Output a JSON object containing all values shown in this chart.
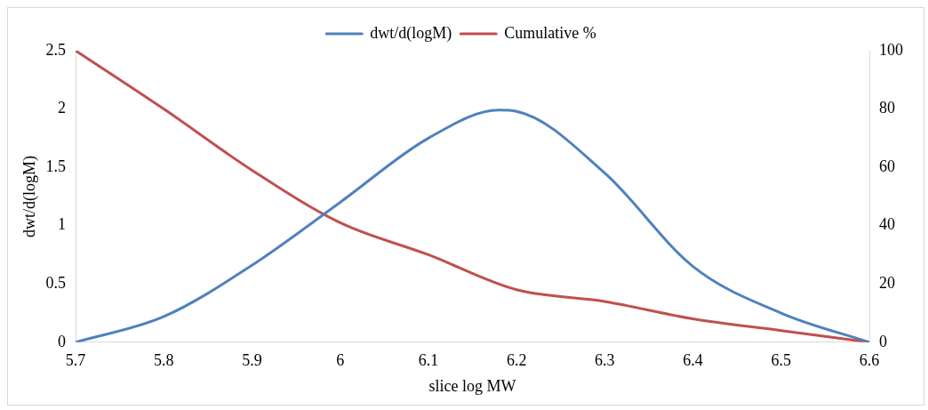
{
  "chart_data": {
    "type": "line",
    "xlabel": "slice log MW",
    "ylabel": "dwt/d(logM)",
    "x": [
      5.7,
      5.8,
      5.9,
      6.0,
      6.1,
      6.18,
      6.2,
      6.3,
      6.4,
      6.5,
      6.6
    ],
    "series": [
      {
        "name": "dwt/d(logM)",
        "color": "#4f81bd",
        "values": [
          0,
          0.22,
          0.66,
          1.2,
          1.75,
          1.99,
          1.98,
          1.45,
          0.65,
          0.25,
          0
        ]
      },
      {
        "name": "Cumulative %",
        "color": "#c0504d",
        "axis": "y2",
        "x": [
          5.7,
          5.8,
          5.9,
          6.0,
          6.1,
          6.2,
          6.3,
          6.4,
          6.5,
          6.6
        ],
        "values": [
          100,
          80,
          59,
          41,
          30,
          18,
          14,
          8,
          4,
          0
        ]
      }
    ],
    "xlim": [
      5.7,
      6.6
    ],
    "xticks": [
      5.7,
      5.8,
      5.9,
      6,
      6.1,
      6.2,
      6.3,
      6.4,
      6.5,
      6.6
    ],
    "ylim": [
      0,
      2.5
    ],
    "yticks": [
      0,
      0.5,
      1,
      1.5,
      2,
      2.5
    ],
    "y2lim": [
      0,
      100
    ],
    "y2ticks": [
      0,
      20,
      40,
      60,
      80,
      100
    ],
    "grid": false,
    "legend": "top",
    "marker": "none",
    "line_style": "solid"
  }
}
